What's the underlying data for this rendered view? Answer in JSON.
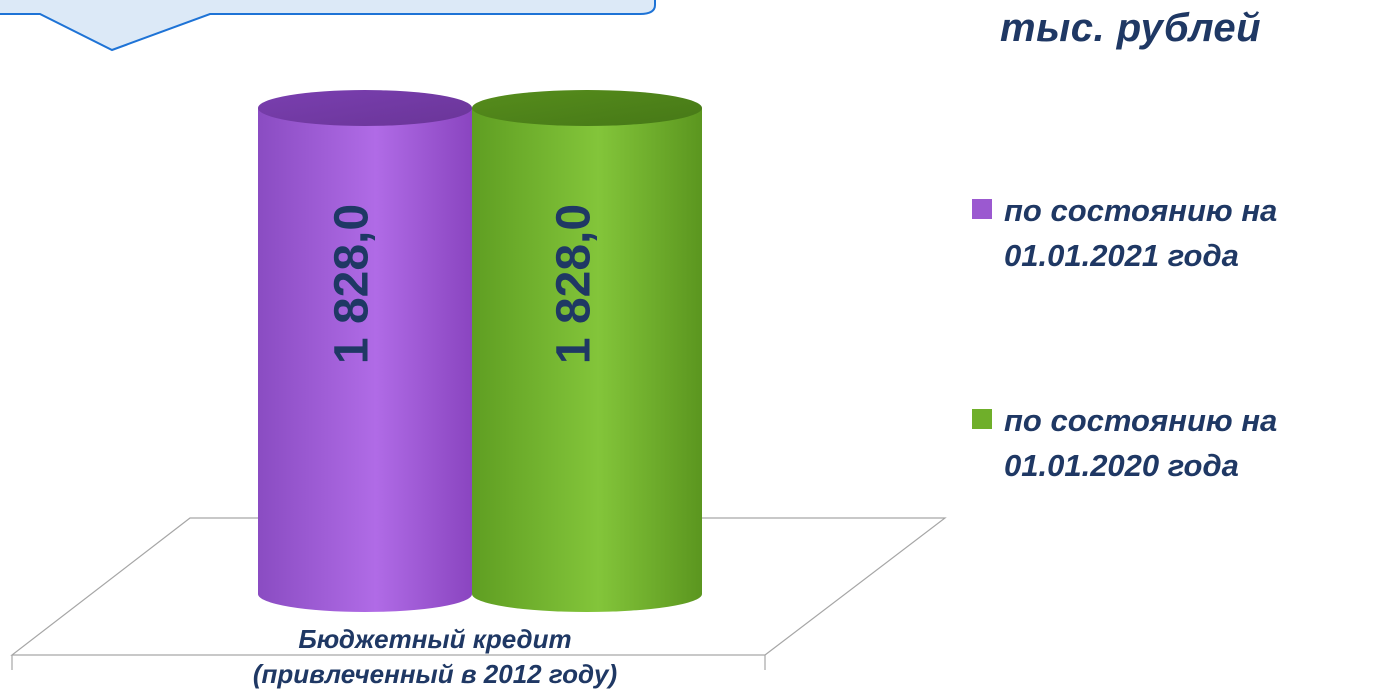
{
  "unit_label": "тыс. рублей",
  "colors": {
    "series1": "#9b59d0",
    "series2": "#6faf2a",
    "text": "#1f3864",
    "callout_fill": "#dce9f7",
    "callout_stroke": "#1e73d6"
  },
  "chart_data": {
    "type": "bar",
    "categories": [
      "Бюджетный кредит\n(привлеченный в 2012 году)"
    ],
    "series": [
      {
        "name": "по состоянию на\n01.01.2021 года",
        "values": [
          1828.0
        ],
        "label": "1 828,0",
        "color": "#9b59d0"
      },
      {
        "name": "по состоянию на\n01.01.2020 года",
        "values": [
          1828.0
        ],
        "label": "1 828,0",
        "color": "#6faf2a"
      }
    ],
    "legend_position": "right",
    "shape": "cylinder",
    "grid": false
  }
}
